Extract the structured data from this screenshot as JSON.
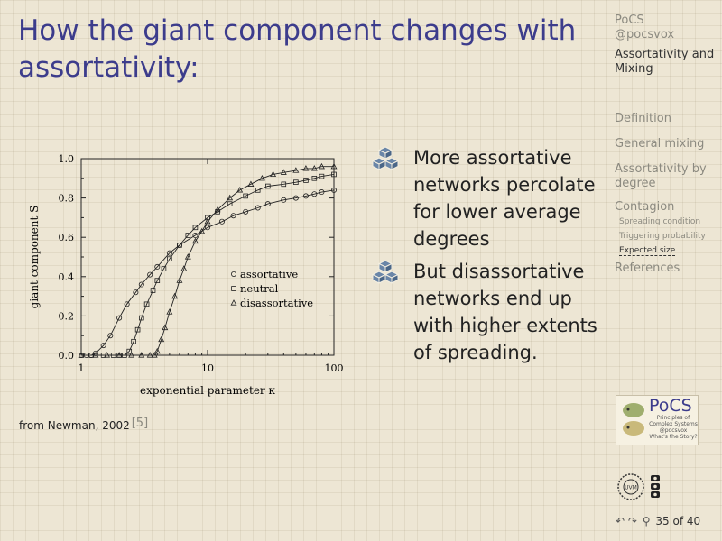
{
  "slide": {
    "title": "How the giant component changes with assortativity:",
    "caption": "from Newman, 2002",
    "citation": "[5]",
    "bullets": [
      "More assortative networks percolate for lower average degrees",
      "But disassortative networks end up with higher extents of spreading."
    ]
  },
  "sidebar": {
    "header1": "PoCS",
    "header2": "@pocsvox",
    "current_talk": "Assortativity and Mixing",
    "items": [
      "Definition",
      "General mixing",
      "Assortativity by degree",
      "Contagion"
    ],
    "subitems": [
      "Spreading condition",
      "Triggering probability",
      "Expected size"
    ],
    "last_item": "References"
  },
  "logo": {
    "title": "PoCS",
    "sub1": "Principles of",
    "sub2": "Complex Systems",
    "sub3": "@pocsvox",
    "sub4": "What's the Story?"
  },
  "emblem": {
    "uvm": "UVM"
  },
  "nav": {
    "symbols": "↶ ↷",
    "page": "35 of 40"
  },
  "colors": {
    "title": "#3c3c8c",
    "sidebar_muted": "#8c8a80",
    "cube": "#6a86a8"
  },
  "chart_data": {
    "type": "line",
    "xscale": "log",
    "xlim": [
      1,
      100
    ],
    "ylim": [
      0,
      1
    ],
    "xlabel": "exponential parameter κ",
    "ylabel": "giant component S",
    "xticks": [
      "1",
      "10",
      "100"
    ],
    "yticks": [
      "0.0",
      "0.2",
      "0.4",
      "0.6",
      "0.8",
      "1.0"
    ],
    "legend_position": "center-right",
    "series": [
      {
        "name": "assortative",
        "marker": "circle",
        "x": [
          1,
          1.1,
          1.2,
          1.3,
          1.5,
          1.7,
          2,
          2.3,
          2.7,
          3,
          3.5,
          4,
          5,
          6,
          8,
          10,
          13,
          16,
          20,
          25,
          30,
          40,
          50,
          60,
          70,
          80,
          100
        ],
        "y": [
          0,
          0,
          0,
          0.01,
          0.05,
          0.1,
          0.19,
          0.26,
          0.32,
          0.36,
          0.41,
          0.45,
          0.52,
          0.56,
          0.61,
          0.65,
          0.68,
          0.71,
          0.73,
          0.75,
          0.77,
          0.79,
          0.8,
          0.81,
          0.82,
          0.83,
          0.84
        ]
      },
      {
        "name": "neutral",
        "marker": "square",
        "x": [
          1,
          1.2,
          1.5,
          1.8,
          2,
          2.2,
          2.4,
          2.6,
          2.8,
          3,
          3.3,
          3.7,
          4,
          4.5,
          5,
          6,
          7,
          8,
          10,
          12,
          15,
          20,
          25,
          30,
          40,
          50,
          60,
          70,
          80,
          100
        ],
        "y": [
          0,
          0,
          0,
          0,
          0,
          0,
          0.02,
          0.07,
          0.13,
          0.19,
          0.26,
          0.33,
          0.38,
          0.44,
          0.49,
          0.56,
          0.61,
          0.65,
          0.7,
          0.73,
          0.77,
          0.81,
          0.84,
          0.86,
          0.87,
          0.88,
          0.89,
          0.9,
          0.91,
          0.92
        ]
      },
      {
        "name": "disassortative",
        "marker": "triangle",
        "x": [
          1,
          1.3,
          1.6,
          2,
          2.5,
          3,
          3.5,
          3.8,
          4,
          4.3,
          4.6,
          5,
          5.5,
          6,
          6.5,
          7,
          8,
          9,
          10,
          12,
          15,
          18,
          22,
          27,
          33,
          40,
          50,
          60,
          70,
          80,
          100
        ],
        "y": [
          0,
          0,
          0,
          0,
          0,
          0,
          0,
          0,
          0.02,
          0.08,
          0.14,
          0.22,
          0.3,
          0.38,
          0.44,
          0.5,
          0.58,
          0.63,
          0.68,
          0.74,
          0.8,
          0.84,
          0.87,
          0.9,
          0.92,
          0.93,
          0.94,
          0.95,
          0.95,
          0.96,
          0.96
        ]
      }
    ]
  }
}
